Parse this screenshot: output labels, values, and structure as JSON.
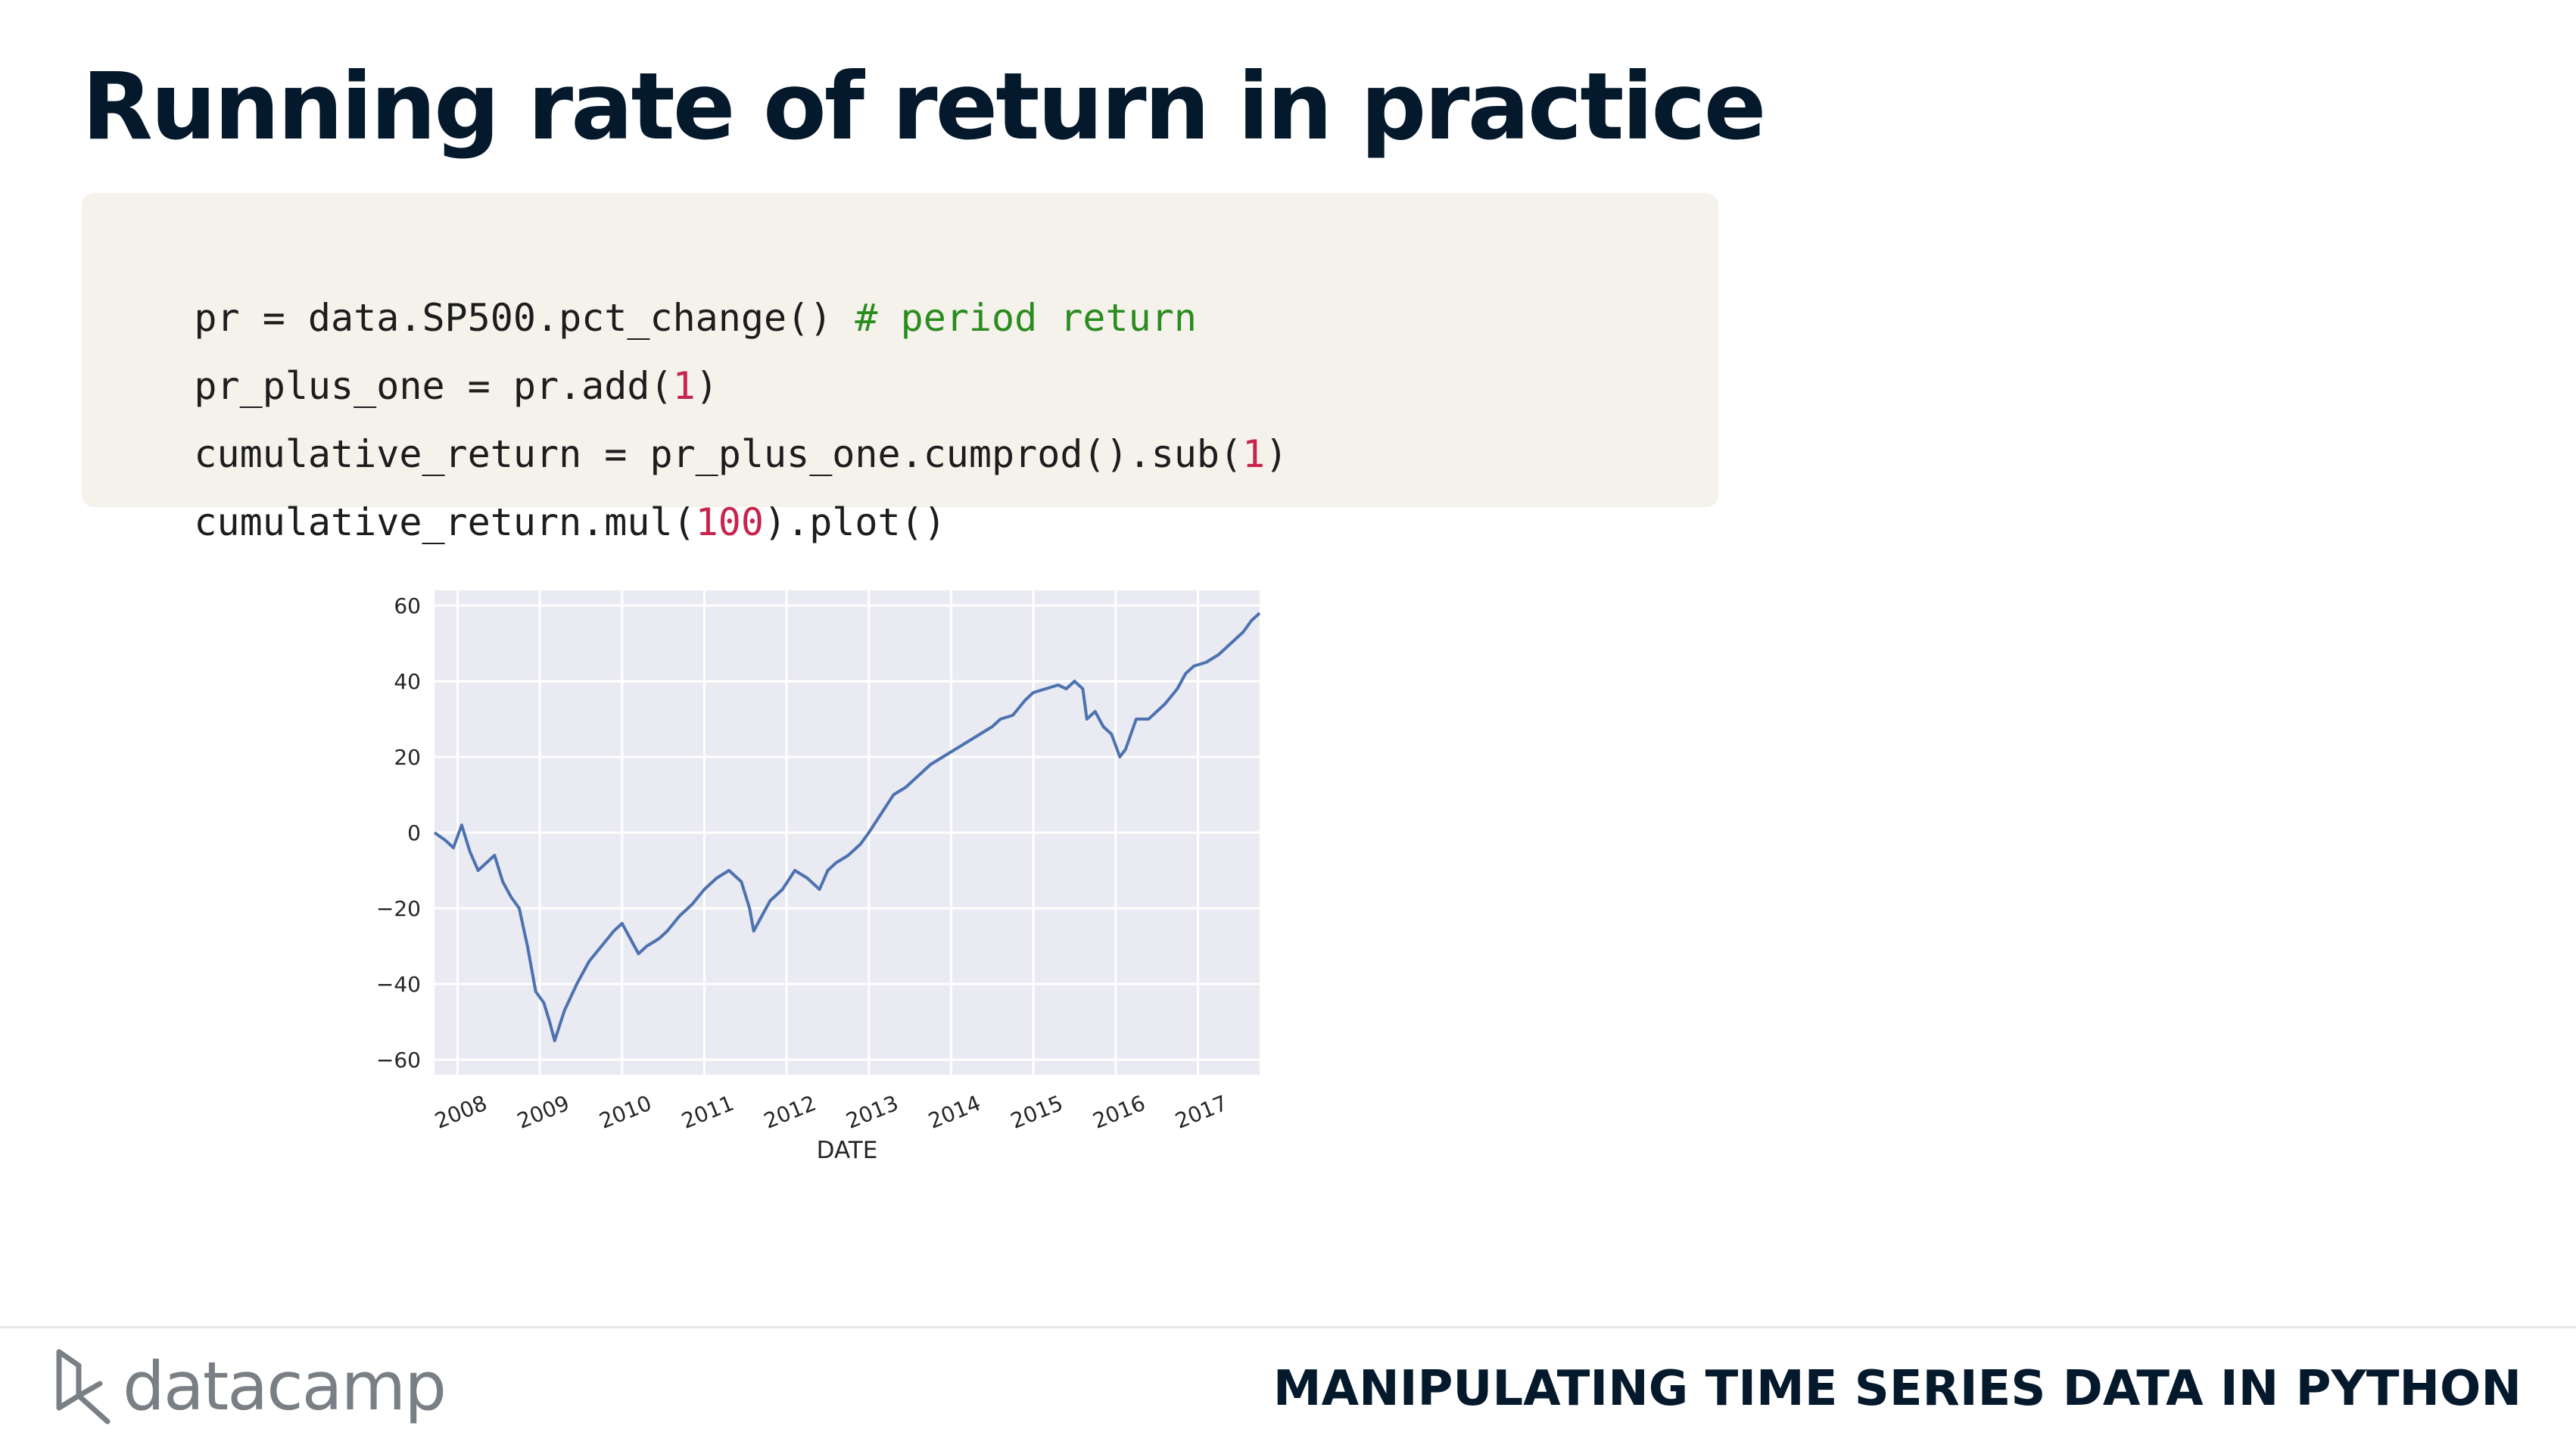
{
  "slide": {
    "title": "Running rate of return in practice",
    "course": "MANIPULATING TIME SERIES DATA IN PYTHON",
    "brand": "datacamp"
  },
  "code": {
    "lines": [
      [
        {
          "t": "pr = data.SP500.pct_change() ",
          "k": "plain"
        },
        {
          "t": "# period return",
          "k": "comment"
        }
      ],
      [
        {
          "t": "pr_plus_one = pr.add(",
          "k": "plain"
        },
        {
          "t": "1",
          "k": "num"
        },
        {
          "t": ")",
          "k": "plain"
        }
      ],
      [
        {
          "t": "cumulative_return = pr_plus_one.cumprod().sub(",
          "k": "plain"
        },
        {
          "t": "1",
          "k": "num"
        },
        {
          "t": ")",
          "k": "plain"
        }
      ],
      [
        {
          "t": "cumulative_return.mul(",
          "k": "plain"
        },
        {
          "t": "100",
          "k": "num"
        },
        {
          "t": ").plot()",
          "k": "plain"
        }
      ]
    ]
  },
  "colors": {
    "line": "#4c72b0",
    "plot_bg": "#eaeaf2",
    "grid": "#ffffff",
    "code_bg": "#f5f2ec",
    "number": "#c7254e",
    "comment": "#2a8c1f",
    "title": "#05192d",
    "logo": "#7a7f85"
  },
  "chart_data": {
    "type": "line",
    "title": "",
    "xlabel": "DATE",
    "ylabel": "",
    "xlim": [
      2007.72,
      2017.75
    ],
    "ylim": [
      -64,
      64
    ],
    "yticks": [
      -60,
      -40,
      -20,
      0,
      20,
      40,
      60
    ],
    "xticks": [
      "2008",
      "2009",
      "2010",
      "2011",
      "2012",
      "2013",
      "2014",
      "2015",
      "2016",
      "2017"
    ],
    "grid": true,
    "series": [
      {
        "name": "",
        "x": [
          2007.72,
          2007.85,
          2007.95,
          2008.05,
          2008.15,
          2008.25,
          2008.35,
          2008.45,
          2008.55,
          2008.65,
          2008.75,
          2008.85,
          2008.95,
          2009.05,
          2009.12,
          2009.18,
          2009.3,
          2009.45,
          2009.6,
          2009.75,
          2009.9,
          2010.0,
          2010.1,
          2010.2,
          2010.3,
          2010.45,
          2010.55,
          2010.7,
          2010.85,
          2011.0,
          2011.15,
          2011.3,
          2011.45,
          2011.55,
          2011.6,
          2011.7,
          2011.8,
          2011.95,
          2012.1,
          2012.25,
          2012.4,
          2012.5,
          2012.6,
          2012.75,
          2012.9,
          2013.0,
          2013.15,
          2013.3,
          2013.45,
          2013.6,
          2013.75,
          2013.9,
          2014.05,
          2014.2,
          2014.35,
          2014.5,
          2014.6,
          2014.75,
          2014.9,
          2015.0,
          2015.15,
          2015.3,
          2015.4,
          2015.5,
          2015.6,
          2015.65,
          2015.75,
          2015.85,
          2015.95,
          2016.05,
          2016.12,
          2016.25,
          2016.4,
          2016.5,
          2016.6,
          2016.75,
          2016.85,
          2016.95,
          2017.1,
          2017.25,
          2017.4,
          2017.55,
          2017.65,
          2017.75
        ],
        "values": [
          0,
          -2,
          -4,
          2,
          -5,
          -10,
          -8,
          -6,
          -13,
          -17,
          -20,
          -30,
          -42,
          -45,
          -50,
          -55,
          -47,
          -40,
          -34,
          -30,
          -26,
          -24,
          -28,
          -32,
          -30,
          -28,
          -26,
          -22,
          -19,
          -15,
          -12,
          -10,
          -13,
          -20,
          -26,
          -22,
          -18,
          -15,
          -10,
          -12,
          -15,
          -10,
          -8,
          -6,
          -3,
          0,
          5,
          10,
          12,
          15,
          18,
          20,
          22,
          24,
          26,
          28,
          30,
          31,
          35,
          37,
          38,
          39,
          38,
          40,
          38,
          30,
          32,
          28,
          26,
          20,
          22,
          30,
          30,
          32,
          34,
          38,
          42,
          44,
          45,
          47,
          50,
          53,
          56,
          58
        ]
      }
    ]
  }
}
